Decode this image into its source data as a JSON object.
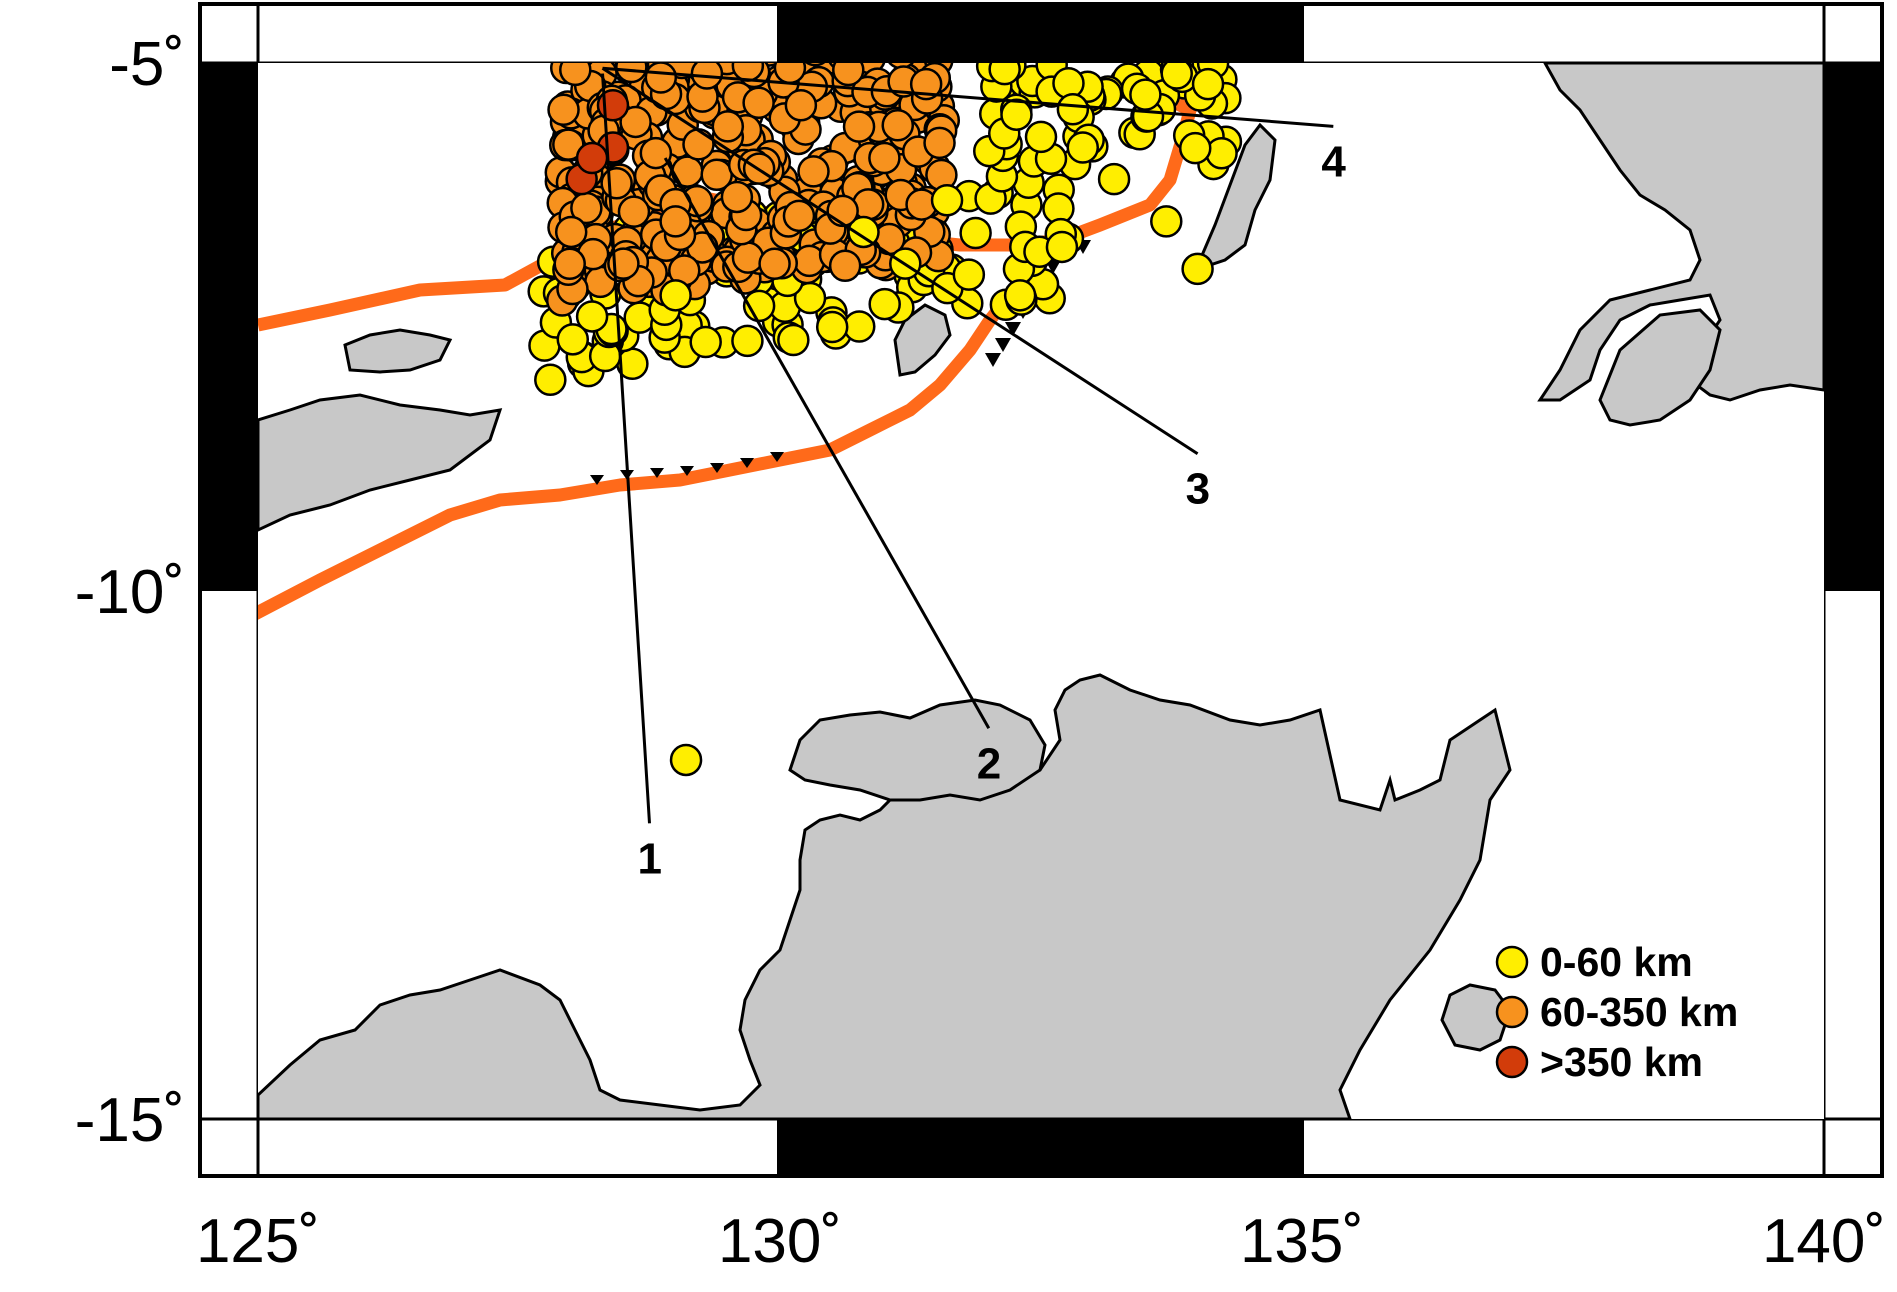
{
  "map": {
    "lon_range": [
      125,
      140
    ],
    "lat_range": [
      -15,
      -5
    ],
    "x_ticks": [
      {
        "value": 125,
        "label": "125˚"
      },
      {
        "value": 130,
        "label": "130˚"
      },
      {
        "value": 135,
        "label": "135˚"
      },
      {
        "value": 140,
        "label": "140˚"
      }
    ],
    "y_ticks": [
      {
        "value": -5,
        "label": "-5˚"
      },
      {
        "value": -10,
        "label": "-10˚"
      },
      {
        "value": -15,
        "label": "-15˚"
      }
    ],
    "land_color": "#c8c8c8",
    "plate_boundary_color": "#ff6a1a"
  },
  "profiles": [
    {
      "label": "1",
      "start": [
        128.3,
        -5.1
      ],
      "end": [
        128.75,
        -12.2
      ]
    },
    {
      "label": "2",
      "start": [
        128.9,
        -5.9
      ],
      "end": [
        132.0,
        -11.3
      ]
    },
    {
      "label": "3",
      "start": [
        128.3,
        -5.05
      ],
      "end": [
        134.0,
        -8.7
      ]
    },
    {
      "label": "4",
      "start": [
        128.3,
        -5.05
      ],
      "end": [
        135.3,
        -5.6
      ]
    }
  ],
  "legend": [
    {
      "label": "0-60 km",
      "color": "#ffee00"
    },
    {
      "label": "60-350 km",
      "color": "#f7921e"
    },
    {
      "label": ">350 km",
      "color": "#d23c0a"
    }
  ],
  "events": [
    {
      "lon": 127.8,
      "lat": -8.0,
      "depth": "0-60 km"
    },
    {
      "lon": 129.1,
      "lat": -11.6,
      "depth": "0-60 km"
    },
    {
      "lon": 132.3,
      "lat": -7.2,
      "depth": "0-60 km"
    },
    {
      "lon": 133.7,
      "lat": -6.5,
      "depth": "0-60 km"
    },
    {
      "lon": 134.0,
      "lat": -6.95,
      "depth": "0-60 km"
    },
    {
      "lon": 133.2,
      "lat": -6.1,
      "depth": "0-60 km"
    },
    {
      "lon": 132.5,
      "lat": -5.7,
      "depth": "0-60 km"
    },
    {
      "lon": 134.1,
      "lat": -5.2,
      "depth": "0-60 km"
    },
    {
      "lon": 133.8,
      "lat": -5.1,
      "depth": "0-60 km"
    },
    {
      "lon": 133.5,
      "lat": -5.3,
      "depth": "0-60 km"
    },
    {
      "lon": 132.9,
      "lat": -5.8,
      "depth": "0-60 km"
    },
    {
      "lon": 130.5,
      "lat": -7.5,
      "depth": "0-60 km"
    },
    {
      "lon": 131.2,
      "lat": -6.9,
      "depth": "0-60 km"
    },
    {
      "lon": 129.8,
      "lat": -7.3,
      "depth": "0-60 km"
    },
    {
      "lon": 128.2,
      "lat": -7.4,
      "depth": "0-60 km"
    },
    {
      "lon": 129.0,
      "lat": -7.2,
      "depth": "0-60 km"
    },
    {
      "lon": 131.6,
      "lat": -6.3,
      "depth": "0-60 km"
    },
    {
      "lon": 130.8,
      "lat": -6.6,
      "depth": "0-60 km"
    },
    {
      "lon": 128.4,
      "lat": -5.8,
      "depth": ">350 km"
    },
    {
      "lon": 128.1,
      "lat": -6.1,
      "depth": ">350 km"
    },
    {
      "lon": 128.4,
      "lat": -5.4,
      "depth": ">350 km"
    },
    {
      "lon": 128.2,
      "lat": -5.9,
      "depth": ">350 km"
    },
    {
      "lon": 129.5,
      "lat": -5.6,
      "depth": "60-350 km"
    },
    {
      "lon": 130.2,
      "lat": -5.4,
      "depth": "60-350 km"
    },
    {
      "lon": 129.0,
      "lat": -6.5,
      "depth": "60-350 km"
    },
    {
      "lon": 128.5,
      "lat": -6.9,
      "depth": "60-350 km"
    },
    {
      "lon": 130.6,
      "lat": -6.4,
      "depth": "60-350 km"
    },
    {
      "lon": 129.8,
      "lat": -6.0,
      "depth": "60-350 km"
    },
    {
      "lon": 131.4,
      "lat": -5.2,
      "depth": "60-350 km"
    },
    {
      "lon": 131.0,
      "lat": -5.9,
      "depth": "60-350 km"
    },
    {
      "lon": 128.0,
      "lat": -6.6,
      "depth": "60-350 km"
    },
    {
      "lon": 129.3,
      "lat": -5.1,
      "depth": "60-350 km"
    }
  ]
}
